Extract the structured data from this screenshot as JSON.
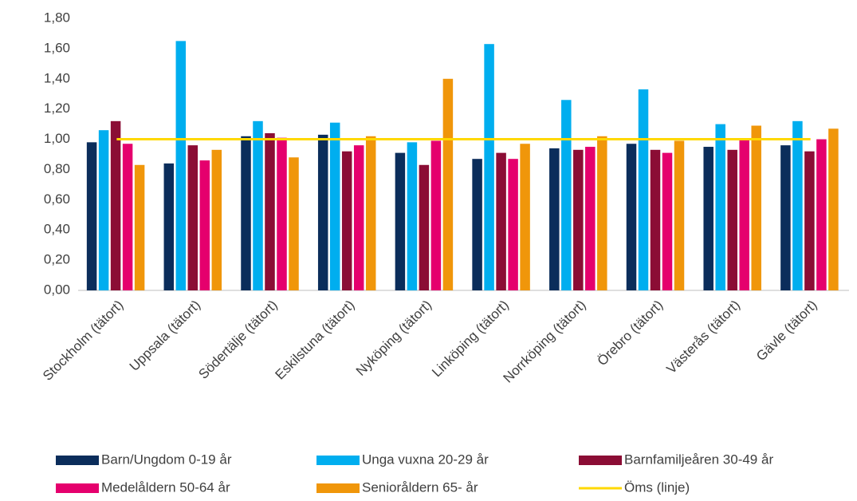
{
  "chart_data": {
    "type": "bar",
    "categories": [
      "Stockholm (tätort)",
      "Uppsala (tätort)",
      "Södertälje (tätort)",
      "Eskilstuna (tätort)",
      "Nyköping (tätort)",
      "Linköping (tätort)",
      "Norrköping (tätort)",
      "Örebro (tätort)",
      "Västerås (tätort)",
      "Gävle (tätort)"
    ],
    "series": [
      {
        "name": "Barn/Ungdom 0-19 år",
        "color": "#0b2d5b",
        "values": [
          0.98,
          0.84,
          1.02,
          1.03,
          0.91,
          0.87,
          0.94,
          0.97,
          0.95,
          0.96
        ]
      },
      {
        "name": "Unga vuxna 20-29 år",
        "color": "#00aeef",
        "values": [
          1.06,
          1.65,
          1.12,
          1.11,
          0.98,
          1.63,
          1.26,
          1.33,
          1.1,
          1.12
        ]
      },
      {
        "name": "Barnfamiljeåren 30-49 år",
        "color": "#8b0d35",
        "values": [
          1.12,
          0.96,
          1.04,
          0.92,
          0.83,
          0.91,
          0.93,
          0.93,
          0.93,
          0.92
        ]
      },
      {
        "name": "Medelåldern 50-64 år",
        "color": "#e5006d",
        "values": [
          0.97,
          0.86,
          1.01,
          0.96,
          0.99,
          0.87,
          0.95,
          0.91,
          1.0,
          1.0
        ]
      },
      {
        "name": "Senioråldern 65- år",
        "color": "#f0960a",
        "values": [
          0.83,
          0.93,
          0.88,
          1.02,
          1.4,
          0.97,
          1.02,
          0.99,
          1.09,
          1.07
        ]
      },
      {
        "name": "Öms (linje)",
        "color": "#ffd800",
        "type": "line",
        "values": [
          1.0,
          1.0,
          1.0,
          1.0,
          1.0,
          1.0,
          1.0,
          1.0,
          1.0,
          1.0
        ]
      }
    ],
    "ylim": [
      0,
      1.8
    ],
    "yticks": [
      {
        "value": 0,
        "label": "0,00"
      },
      {
        "value": 0.2,
        "label": "0,20"
      },
      {
        "value": 0.4,
        "label": "0,40"
      },
      {
        "value": 0.6,
        "label": "0,60"
      },
      {
        "value": 0.8,
        "label": "0,80"
      },
      {
        "value": 1.0,
        "label": "1,00"
      },
      {
        "value": 1.2,
        "label": "1,20"
      },
      {
        "value": 1.4,
        "label": "1,40"
      },
      {
        "value": 1.6,
        "label": "1,60"
      },
      {
        "value": 1.8,
        "label": "1,80"
      }
    ],
    "grid": false,
    "legend": "bottom"
  }
}
